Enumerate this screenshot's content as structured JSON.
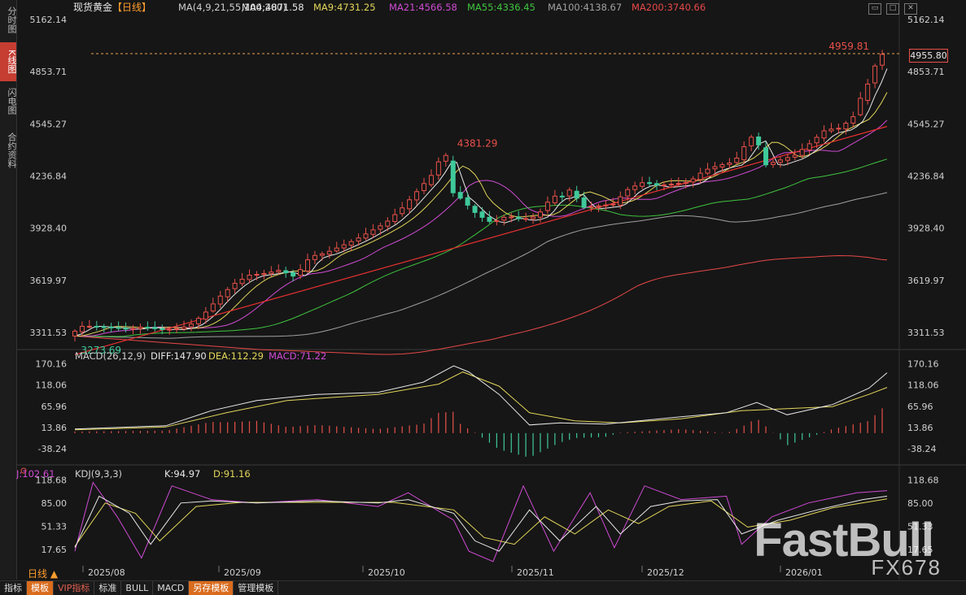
{
  "sidebar": {
    "tabs": [
      {
        "label": "分时图",
        "active": false
      },
      {
        "label": "K线图",
        "active": true
      },
      {
        "label": "闪电图",
        "active": false
      },
      {
        "label": "合约资料",
        "active": false
      }
    ]
  },
  "header": {
    "symbol": "现货黄金",
    "period_tag": "【日线】",
    "ma_legend": [
      {
        "text": "MA(4,9,21,55,100,200)",
        "color": "#cfcfcf"
      },
      {
        "text": "MA4:4871.58",
        "color": "#e8e8e8"
      },
      {
        "text": "MA9:4731.25",
        "color": "#e3d65a"
      },
      {
        "text": "MA21:4566.58",
        "color": "#d04bd4"
      },
      {
        "text": "MA55:4336.45",
        "color": "#3fc43f"
      },
      {
        "text": "MA100:4138.67",
        "color": "#a0a0a0"
      },
      {
        "text": "MA200:3740.66",
        "color": "#e84848"
      }
    ]
  },
  "main_axis": {
    "ticks": [
      "5162.14",
      "4853.71",
      "4545.27",
      "4236.84",
      "3928.40",
      "3619.97",
      "3311.53"
    ],
    "tick_values": [
      5162.14,
      4853.71,
      4545.27,
      4236.84,
      3928.4,
      3619.97,
      3311.53
    ],
    "current_price": "4955.80",
    "high_label": "4959.81",
    "peak_label": "4381.29",
    "low_label": "3273.69"
  },
  "macd_panel": {
    "legend": [
      {
        "text": "MACD(26,12,9)",
        "color": "#cfcfcf"
      },
      {
        "text": "DIFF:147.90",
        "color": "#e8e8e8"
      },
      {
        "text": "DEA:112.29",
        "color": "#e3d65a"
      },
      {
        "text": "MACD:71.22",
        "color": "#d04bd4"
      }
    ],
    "ticks": [
      "170.16",
      "118.06",
      "65.96",
      "13.86",
      "-38.24"
    ]
  },
  "kdj_panel": {
    "legend": [
      {
        "text": "KDJ(9,3,3)",
        "color": "#cfcfcf"
      },
      {
        "text": "K:94.97",
        "color": "#e8e8e8"
      },
      {
        "text": "D:91.16",
        "color": "#e3d65a"
      },
      {
        "text": "J:102.61",
        "color": "#d04bd4"
      }
    ],
    "ticks": [
      "118.68",
      "85.00",
      "51.33",
      "17.65"
    ]
  },
  "x_axis": {
    "labels": [
      "2025/08",
      "2025/09",
      "2025/10",
      "2025/11",
      "2025/12",
      "2026/01"
    ]
  },
  "period_label": "日线",
  "bottom_tabs": [
    "指标",
    "模板",
    "VIP指标",
    "标准",
    "BULL",
    "MACD",
    "另存模板",
    "管理模板"
  ],
  "watermark": {
    "main": "FastBull",
    "sub": "FX678"
  },
  "colors": {
    "up": "#e8504a",
    "down": "#3fc99a",
    "bg": "#161616",
    "grid": "#2a2a2a"
  },
  "chart_data": {
    "type": "candlestick",
    "title": "现货黄金【日线】",
    "ylim": [
      3220,
      5210
    ],
    "x_labels": [
      "2025/08",
      "2025/09",
      "2025/10",
      "2025/11",
      "2025/12",
      "2026/01"
    ],
    "close_path": [
      [
        0,
        3290
      ],
      [
        5,
        3350
      ],
      [
        10,
        3345
      ],
      [
        15,
        3340
      ],
      [
        20,
        3330
      ],
      [
        25,
        3345
      ],
      [
        30,
        3330
      ],
      [
        35,
        3330
      ],
      [
        40,
        3350
      ],
      [
        45,
        3420
      ],
      [
        50,
        3520
      ],
      [
        55,
        3600
      ],
      [
        60,
        3650
      ],
      [
        65,
        3660
      ],
      [
        70,
        3680
      ],
      [
        75,
        3640
      ],
      [
        80,
        3760
      ],
      [
        85,
        3780
      ],
      [
        90,
        3820
      ],
      [
        95,
        3860
      ],
      [
        100,
        3910
      ],
      [
        105,
        3960
      ],
      [
        110,
        4040
      ],
      [
        115,
        4140
      ],
      [
        120,
        4240
      ],
      [
        123,
        4340
      ],
      [
        125,
        4360
      ],
      [
        127,
        4140
      ],
      [
        130,
        4100
      ],
      [
        135,
        4010
      ],
      [
        140,
        3960
      ],
      [
        145,
        4000
      ],
      [
        150,
        3980
      ],
      [
        155,
        4000
      ],
      [
        160,
        4120
      ],
      [
        163,
        4110
      ],
      [
        166,
        4160
      ],
      [
        170,
        4050
      ],
      [
        175,
        4060
      ],
      [
        180,
        4070
      ],
      [
        185,
        4160
      ],
      [
        190,
        4200
      ],
      [
        195,
        4180
      ],
      [
        200,
        4190
      ],
      [
        205,
        4200
      ],
      [
        210,
        4270
      ],
      [
        215,
        4300
      ],
      [
        220,
        4320
      ],
      [
        225,
        4460
      ],
      [
        227,
        4480
      ],
      [
        230,
        4300
      ],
      [
        235,
        4330
      ],
      [
        240,
        4360
      ],
      [
        245,
        4430
      ],
      [
        250,
        4510
      ],
      [
        255,
        4520
      ],
      [
        260,
        4600
      ],
      [
        262,
        4720
      ],
      [
        265,
        4810
      ],
      [
        267,
        4920
      ],
      [
        268,
        4955.8
      ]
    ],
    "moving_averages": {
      "MA4": 4871.58,
      "MA9": 4731.25,
      "MA21": 4566.58,
      "MA55": 4336.45,
      "MA100": 4138.67,
      "MA200": 3740.66
    },
    "trendline": [
      [
        0,
        3180
      ],
      [
        268,
        4530
      ]
    ],
    "macd": {
      "ylim": [
        -70,
        185
      ],
      "DIFF": 147.9,
      "DEA": 112.29,
      "MACD": 71.22,
      "diff_path": [
        [
          0,
          10
        ],
        [
          30,
          18
        ],
        [
          45,
          55
        ],
        [
          60,
          80
        ],
        [
          80,
          95
        ],
        [
          100,
          100
        ],
        [
          115,
          125
        ],
        [
          125,
          165
        ],
        [
          130,
          150
        ],
        [
          140,
          95
        ],
        [
          150,
          20
        ],
        [
          160,
          25
        ],
        [
          175,
          22
        ],
        [
          200,
          40
        ],
        [
          215,
          50
        ],
        [
          225,
          75
        ],
        [
          235,
          45
        ],
        [
          250,
          70
        ],
        [
          262,
          110
        ],
        [
          268,
          148
        ]
      ],
      "dea_path": [
        [
          0,
          8
        ],
        [
          30,
          15
        ],
        [
          50,
          50
        ],
        [
          70,
          80
        ],
        [
          100,
          95
        ],
        [
          120,
          120
        ],
        [
          128,
          150
        ],
        [
          140,
          115
        ],
        [
          150,
          50
        ],
        [
          165,
          30
        ],
        [
          180,
          25
        ],
        [
          200,
          35
        ],
        [
          220,
          55
        ],
        [
          235,
          60
        ],
        [
          250,
          65
        ],
        [
          262,
          95
        ],
        [
          268,
          112
        ]
      ]
    },
    "kdj": {
      "ylim": [
        -5,
        125
      ],
      "K": 94.97,
      "D": 91.16,
      "J": 102.61,
      "k_path": [
        [
          0,
          20
        ],
        [
          8,
          95
        ],
        [
          18,
          70
        ],
        [
          25,
          25
        ],
        [
          35,
          85
        ],
        [
          45,
          88
        ],
        [
          60,
          85
        ],
        [
          80,
          88
        ],
        [
          100,
          85
        ],
        [
          110,
          90
        ],
        [
          125,
          70
        ],
        [
          132,
          30
        ],
        [
          140,
          15
        ],
        [
          150,
          75
        ],
        [
          160,
          30
        ],
        [
          172,
          80
        ],
        [
          180,
          40
        ],
        [
          190,
          80
        ],
        [
          200,
          88
        ],
        [
          212,
          90
        ],
        [
          220,
          40
        ],
        [
          232,
          60
        ],
        [
          245,
          75
        ],
        [
          260,
          90
        ],
        [
          268,
          95
        ]
      ],
      "d_path": [
        [
          0,
          22
        ],
        [
          10,
          85
        ],
        [
          20,
          70
        ],
        [
          28,
          30
        ],
        [
          40,
          80
        ],
        [
          55,
          86
        ],
        [
          80,
          86
        ],
        [
          105,
          86
        ],
        [
          125,
          75
        ],
        [
          135,
          35
        ],
        [
          145,
          25
        ],
        [
          155,
          65
        ],
        [
          165,
          40
        ],
        [
          176,
          75
        ],
        [
          186,
          55
        ],
        [
          196,
          80
        ],
        [
          210,
          88
        ],
        [
          222,
          50
        ],
        [
          236,
          60
        ],
        [
          250,
          78
        ],
        [
          268,
          91
        ]
      ],
      "j_path": [
        [
          0,
          15
        ],
        [
          6,
          115
        ],
        [
          14,
          65
        ],
        [
          22,
          5
        ],
        [
          32,
          110
        ],
        [
          45,
          90
        ],
        [
          60,
          85
        ],
        [
          80,
          90
        ],
        [
          100,
          80
        ],
        [
          110,
          100
        ],
        [
          125,
          60
        ],
        [
          130,
          15
        ],
        [
          138,
          0
        ],
        [
          148,
          110
        ],
        [
          158,
          15
        ],
        [
          170,
          100
        ],
        [
          178,
          20
        ],
        [
          188,
          110
        ],
        [
          200,
          90
        ],
        [
          215,
          95
        ],
        [
          220,
          25
        ],
        [
          230,
          65
        ],
        [
          242,
          85
        ],
        [
          258,
          100
        ],
        [
          268,
          103
        ]
      ]
    }
  }
}
